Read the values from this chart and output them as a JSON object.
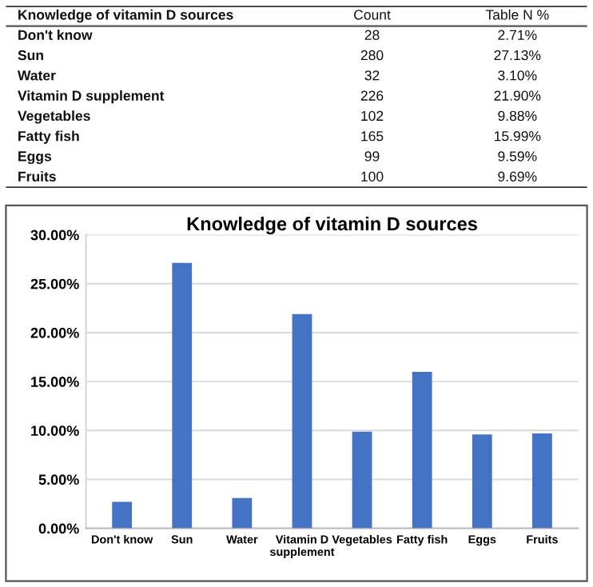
{
  "chart_data": [
    {
      "type": "other",
      "annotations": [
        "Knowledge of vitamin D sources",
        "Count",
        "Table N %",
        "Don't know",
        "28",
        "2.71%",
        "Sun",
        "280",
        "27.13%",
        "Water",
        "32",
        "3.10%",
        "Vitamin D supplement",
        "226",
        "21.90%",
        "Vegetables",
        "102",
        "9.88%",
        "Fatty fish",
        "165",
        "15.99%",
        "Eggs",
        "99",
        "9.59%",
        "Fruits",
        "100",
        "9.69%"
      ]
    },
    {
      "type": "bar",
      "title": "Knowledge of vitamin D sources",
      "categories": [
        "Don't know",
        "Sun",
        "Water",
        "Vitamin D\nsupplement",
        "Vegetables",
        "Fatty fish",
        "Eggs",
        "Fruits"
      ],
      "values": [
        2.71,
        27.13,
        3.1,
        21.9,
        9.88,
        15.99,
        9.59,
        9.69
      ],
      "color": "#4472c4",
      "ylim": [
        0,
        30
      ],
      "yticks": [
        {
          "value": 0,
          "label": "0.00%"
        },
        {
          "value": 5,
          "label": "5.00%"
        },
        {
          "value": 10,
          "label": "10.00%"
        },
        {
          "value": 15,
          "label": "15.00%"
        },
        {
          "value": 20,
          "label": "20.00%"
        },
        {
          "value": 25,
          "label": "25.00%"
        },
        {
          "value": 30,
          "label": "30.00%"
        }
      ],
      "grid": "y",
      "legend": false
    }
  ]
}
